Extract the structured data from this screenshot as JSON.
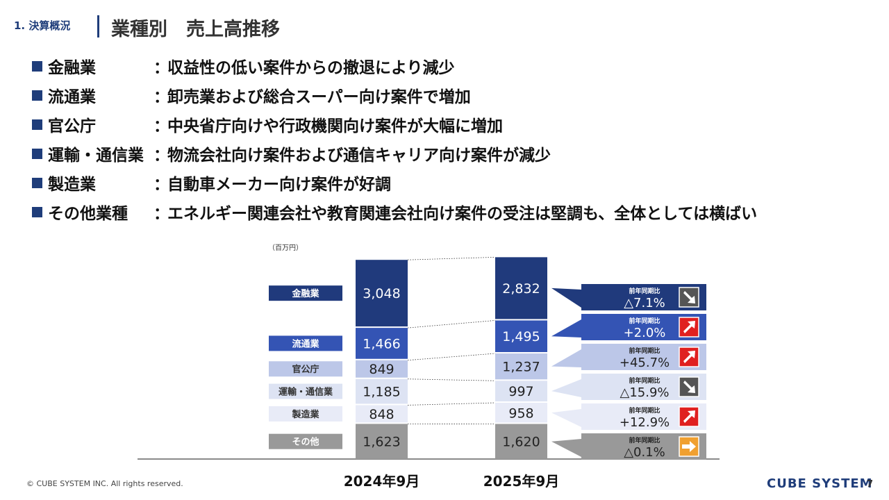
{
  "header": {
    "section_label": "1. 決算概況",
    "title": "業種別　売上高推移"
  },
  "bullets": [
    {
      "name": "金融業",
      "colon": "：",
      "desc": "収益性の低い案件からの撤退により減少"
    },
    {
      "name": "流通業",
      "colon": "：",
      "desc": "卸売業および総合スーパー向け案件で増加"
    },
    {
      "name": "官公庁",
      "colon": "：",
      "desc": "中央省庁向けや行政機関向け案件が大幅に増加"
    },
    {
      "name": "運輸・通信業",
      "colon": "：",
      "desc": "物流会社向け案件および通信キャリア向け案件が減少"
    },
    {
      "name": "製造業",
      "colon": "：",
      "desc": "自動車メーカー向け案件が好調"
    },
    {
      "name": "その他業種",
      "colon": "：",
      "desc": "エネルギー関連会社や教育関連会社向け案件の受注は堅調も、全体としては横ばい"
    }
  ],
  "chart_data": {
    "type": "bar",
    "stacked": true,
    "unit_label": "（百万円）",
    "categories": [
      "2024年9月",
      "2025年9月"
    ],
    "series": [
      {
        "name": "その他",
        "color": "#999999",
        "values": [
          1623,
          1620
        ],
        "labels": [
          "1,623",
          "1,620"
        ],
        "change": "△0.1%",
        "trend": "flat"
      },
      {
        "name": "製造業",
        "color": "#e8ebf7",
        "values": [
          848,
          958
        ],
        "labels": [
          "848",
          "958"
        ],
        "change": "+12.9%",
        "trend": "up"
      },
      {
        "name": "運輸・通信業",
        "color": "#dde3f3",
        "values": [
          1185,
          997
        ],
        "labels": [
          "1,185",
          "997"
        ],
        "change": "△15.9%",
        "trend": "down"
      },
      {
        "name": "官公庁",
        "color": "#bcc7e8",
        "values": [
          849,
          1237
        ],
        "labels": [
          "849",
          "1,237"
        ],
        "change": "+45.7%",
        "trend": "up"
      },
      {
        "name": "流通業",
        "color": "#3454b4",
        "values": [
          1466,
          1495
        ],
        "labels": [
          "1,466",
          "1,495"
        ],
        "change": "+2.0%",
        "trend": "up"
      },
      {
        "name": "金融業",
        "color": "#203a7c",
        "values": [
          3048,
          2832
        ],
        "labels": [
          "3,048",
          "2,832"
        ],
        "change": "△7.1%",
        "trend": "down"
      }
    ],
    "change_caption": "前年同期比"
  },
  "footer": {
    "copyright": "© CUBE SYSTEM INC. All rights reserved.",
    "logo": "CUBE SYSTEM",
    "page_number": "7"
  }
}
